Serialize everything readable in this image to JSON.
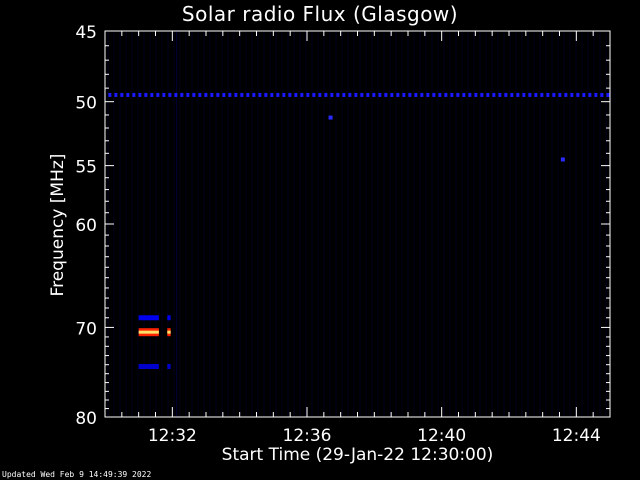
{
  "chart_data": {
    "type": "heatmap",
    "title": "Solar radio Flux (Glasgow)",
    "xlabel": "Start Time (29-Jan-22 12:30:00)",
    "ylabel": "Frequency [MHz]",
    "x_ticks": [
      "12:32",
      "12:36",
      "12:40",
      "12:44"
    ],
    "x_tick_minutes": [
      2,
      6,
      10,
      14
    ],
    "xlim_minutes": [
      0,
      15
    ],
    "y_ticks": [
      45,
      50,
      55,
      60,
      70,
      80
    ],
    "ylim": [
      45,
      80
    ],
    "y_scale": "log",
    "background": "#000000",
    "features": [
      {
        "type": "band",
        "freq": 49.5,
        "x0": 0.1,
        "x1": 15.0,
        "color": "#1a1aff",
        "dashed": true
      },
      {
        "type": "band",
        "freq": 69.0,
        "x0": 1.0,
        "x1": 1.6,
        "color": "#0000ee"
      },
      {
        "type": "band",
        "freq": 69.0,
        "x0": 1.85,
        "x1": 1.95,
        "color": "#0000ee"
      },
      {
        "type": "band",
        "freq": 70.5,
        "x0": 1.0,
        "x1": 1.6,
        "color": "#ff3300"
      },
      {
        "type": "band",
        "freq": 70.5,
        "x0": 1.85,
        "x1": 1.95,
        "color": "#ff3300"
      },
      {
        "type": "band",
        "freq": 74.2,
        "x0": 1.0,
        "x1": 1.6,
        "color": "#0000cc"
      },
      {
        "type": "band",
        "freq": 74.2,
        "x0": 1.85,
        "x1": 1.95,
        "color": "#0000cc"
      },
      {
        "type": "dot",
        "freq": 51.2,
        "x": 6.7,
        "color": "#2a2aff"
      },
      {
        "type": "dot",
        "freq": 54.5,
        "x": 13.6,
        "color": "#2a2aff"
      }
    ]
  },
  "footer": "Updated Wed Feb  9 14:49:39 2022"
}
